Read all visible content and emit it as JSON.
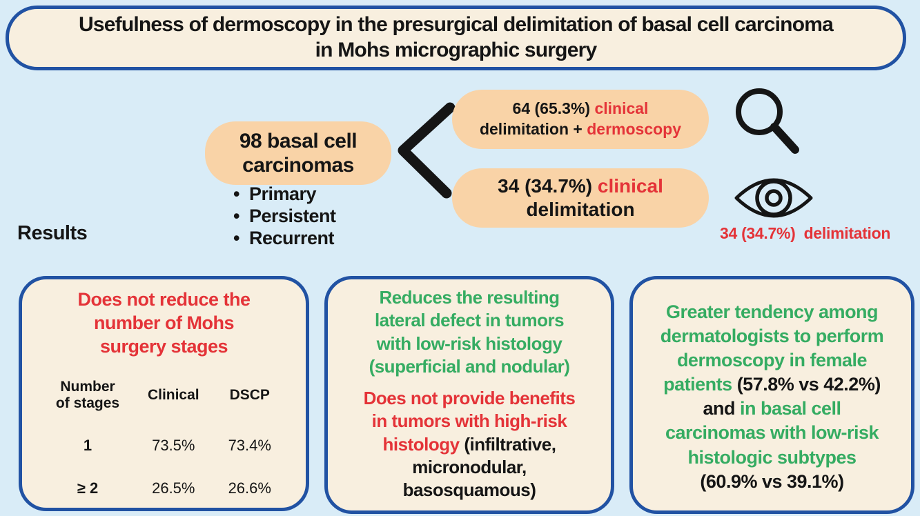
{
  "colors": {
    "background": "#d9ecf7",
    "panel_cream": "#f8efdf",
    "pill_peach": "#f9d3a7",
    "border_blue": "#2152a3",
    "text_black": "#151515",
    "accent_red": "#e43338",
    "accent_green": "#35ac62"
  },
  "title": {
    "line1": "Usefulness of dermoscopy in the presurgical delimitation of basal cell carcinoma",
    "line2": "in Mohs micrographic surgery"
  },
  "flow": {
    "source_pill": {
      "line1": "98 basal cell",
      "line2": "carcinomas"
    },
    "bullets": [
      "Primary",
      "Persistent",
      "Recurrent"
    ],
    "branch_top_lines": [
      [
        {
          "t": "64 (65.3%) ",
          "c": "k"
        },
        {
          "t": "clinical",
          "c": "r"
        }
      ],
      [
        {
          "t": "delimitation + ",
          "c": "k"
        },
        {
          "t": "dermoscopy",
          "c": "r"
        }
      ]
    ],
    "branch_bottom_lines": [
      [
        {
          "t": "34 (34.7%) ",
          "c": "k"
        },
        {
          "t": "clinical",
          "c": "r"
        }
      ],
      [
        {
          "t": "delimitation",
          "c": "k"
        }
      ]
    ],
    "icons": {
      "magnifier": "magnifying-glass",
      "eye": "eye"
    },
    "eye_caption": "34 (34.7%)  delimitation"
  },
  "results_label": "Results",
  "cards": {
    "stages": {
      "title_lines": [
        [
          {
            "t": "Does not reduce the",
            "c": "r"
          }
        ],
        [
          {
            "t": "number of Mohs",
            "c": "r"
          }
        ],
        [
          {
            "t": "surgery stages",
            "c": "r"
          }
        ]
      ],
      "table": {
        "headers": [
          "Number\nof stages",
          "Clinical",
          "DSCP"
        ],
        "rows": [
          [
            "1",
            "73.5%",
            "73.4%"
          ],
          [
            "≥ 2",
            "26.5%",
            "26.6%"
          ]
        ]
      }
    },
    "defect": {
      "para1_lines": [
        [
          {
            "t": "Reduces the resulting",
            "c": "g"
          }
        ],
        [
          {
            "t": "lateral defect in tumors",
            "c": "g"
          }
        ],
        [
          {
            "t": "with low-risk histology",
            "c": "g"
          }
        ],
        [
          {
            "t": "(superficial and nodular)",
            "c": "g"
          }
        ]
      ],
      "para2_lines": [
        [
          {
            "t": "Does not provide benefits",
            "c": "r"
          }
        ],
        [
          {
            "t": "in tumors with high-risk",
            "c": "r"
          }
        ],
        [
          {
            "t": "histology ",
            "c": "r"
          },
          {
            "t": "(infiltrative,",
            "c": "k"
          }
        ],
        [
          {
            "t": "micronodular,",
            "c": "k"
          }
        ],
        [
          {
            "t": "basosquamous)",
            "c": "k"
          }
        ]
      ]
    },
    "tendency": {
      "lines": [
        [
          {
            "t": "Greater tendency among",
            "c": "g"
          }
        ],
        [
          {
            "t": "dermatologists to perform",
            "c": "g"
          }
        ],
        [
          {
            "t": "dermoscopy in female",
            "c": "g"
          }
        ],
        [
          {
            "t": "patients ",
            "c": "g"
          },
          {
            "t": "(57.8% vs 42.2%)",
            "c": "k"
          }
        ],
        [
          {
            "t": "and ",
            "c": "k"
          },
          {
            "t": "in basal cell",
            "c": "g"
          }
        ],
        [
          {
            "t": "carcinomas with low-risk",
            "c": "g"
          }
        ],
        [
          {
            "t": "histologic subtypes",
            "c": "g"
          }
        ],
        [
          {
            "t": "(60.9% vs 39.1%)",
            "c": "k"
          }
        ]
      ]
    }
  }
}
